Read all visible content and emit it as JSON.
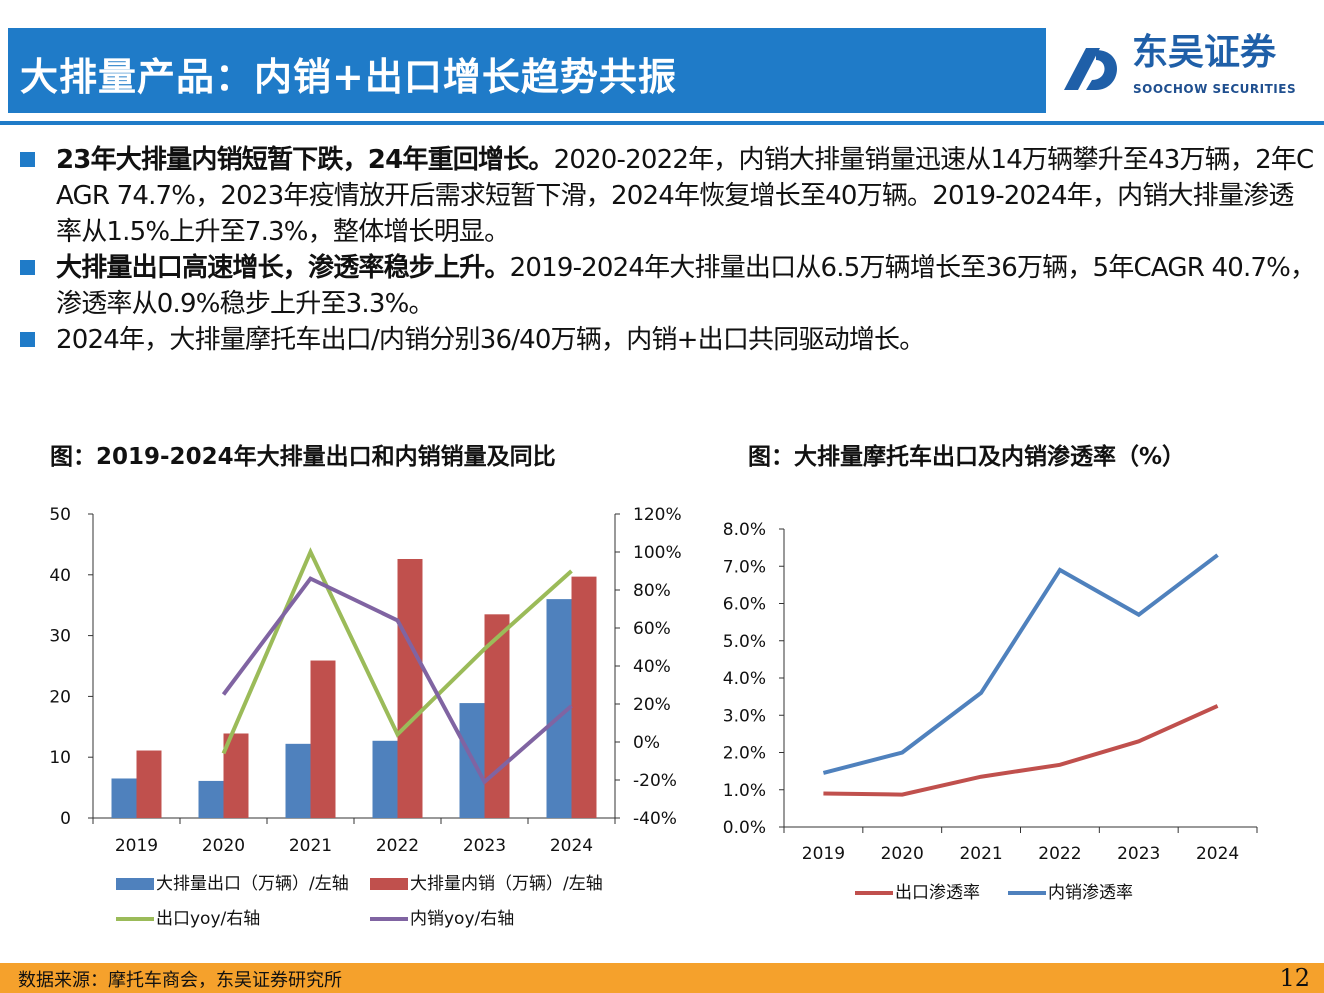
{
  "header": {
    "title": "大排量产品：内销+出口增长趋势共振",
    "logo_cn": "东吴证券",
    "logo_en": "SOOCHOW SECURITIES",
    "accent": "#1f7bc8"
  },
  "bullets": [
    {
      "bold": "23年大排量内销短暂下跌，24年重回增长。",
      "text": "2020-2022年，内销大排量销量迅速从14万辆攀升至43万辆，2年CAGR 74.7%，2023年疫情放开后需求短暂下滑，2024年恢复增长至40万辆。2019-2024年，内销大排量渗透率从1.5%上升至7.3%，整体增长明显。"
    },
    {
      "bold": "大排量出口高速增长，渗透率稳步上升。",
      "text": "2019-2024年大排量出口从6.5万辆增长至36万辆，5年CAGR 40.7%，渗透率从0.9%稳步上升至3.3%。"
    },
    {
      "bold": "",
      "text": "2024年，大排量摩托车出口/内销分别36/40万辆，内销+出口共同驱动增长。"
    }
  ],
  "chart_data": [
    {
      "type": "bar",
      "title": "图：2019-2024年大排量出口和内销销量及同比",
      "categories": [
        "2019",
        "2020",
        "2021",
        "2022",
        "2023",
        "2024"
      ],
      "ylim": [
        0,
        50
      ],
      "yticks": [
        "0",
        "10",
        "20",
        "30",
        "40",
        "50"
      ],
      "y2lim": [
        -40,
        120
      ],
      "y2ticks": [
        "-40%",
        "-20%",
        "0%",
        "20%",
        "40%",
        "60%",
        "80%",
        "100%",
        "120%"
      ],
      "series": [
        {
          "name": "大排量出口（万辆）/左轴",
          "kind": "bar",
          "axis": "left",
          "color": "#4f81bd",
          "values": [
            6.5,
            6.1,
            12.2,
            12.7,
            18.9,
            36.0
          ]
        },
        {
          "name": "大排量内销（万辆）/左轴",
          "kind": "bar",
          "axis": "left",
          "color": "#c0504d",
          "values": [
            11.1,
            13.9,
            25.9,
            42.6,
            33.5,
            39.7
          ]
        },
        {
          "name": "出口yoy/右轴",
          "kind": "line",
          "axis": "right",
          "color": "#9bbb59",
          "values": [
            null,
            -6,
            100,
            4,
            49,
            90
          ]
        },
        {
          "name": "内销yoy/右轴",
          "kind": "line",
          "axis": "right",
          "color": "#8064a2",
          "values": [
            null,
            25,
            86,
            64,
            -21,
            19
          ]
        }
      ]
    },
    {
      "type": "line",
      "title": "图：大排量摩托车出口及内销渗透率（%）",
      "categories": [
        "2019",
        "2020",
        "2021",
        "2022",
        "2023",
        "2024"
      ],
      "ylim": [
        0,
        8
      ],
      "yticks": [
        "0.0%",
        "1.0%",
        "2.0%",
        "3.0%",
        "4.0%",
        "5.0%",
        "6.0%",
        "7.0%",
        "8.0%"
      ],
      "series": [
        {
          "name": "出口渗透率",
          "color": "#c0504d",
          "values": [
            0.9,
            0.87,
            1.35,
            1.67,
            2.3,
            3.25
          ]
        },
        {
          "name": "内销渗透率",
          "color": "#4f81bd",
          "values": [
            1.45,
            2.0,
            3.6,
            6.9,
            5.7,
            7.3
          ]
        }
      ]
    }
  ],
  "footer": {
    "source": "数据来源：摩托车商会，东吴证券研究所",
    "page": "12",
    "color": "#f5a12c"
  }
}
